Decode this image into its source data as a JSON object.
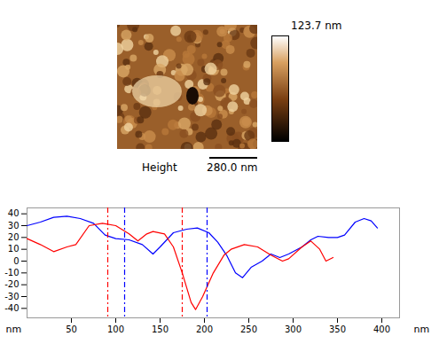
{
  "image": {
    "label": "Height",
    "scale_bar_label": "280.0 nm",
    "color_bar_max_label": "123.7 nm"
  },
  "chart_data": {
    "type": "line",
    "x_label": "nm",
    "y_label": "nm",
    "xlim": [
      0,
      420
    ],
    "xticks": [
      50,
      100,
      150,
      200,
      250,
      300,
      350,
      400
    ],
    "ylim": [
      -48,
      45
    ],
    "yticks": [
      40,
      30,
      20,
      10,
      0,
      -10,
      -20,
      -30,
      -40
    ],
    "grid": false,
    "series": [
      {
        "color": "#0000ff",
        "line_style": "solid",
        "x": [
          0,
          15,
          30,
          45,
          60,
          75,
          88,
          100,
          115,
          130,
          142,
          150,
          165,
          180,
          192,
          205,
          215,
          225,
          235,
          243,
          253,
          265,
          275,
          285,
          295,
          310,
          320,
          328,
          340,
          350,
          358,
          370,
          380,
          388,
          395
        ],
        "values": [
          30,
          33,
          37,
          38,
          36,
          32,
          22,
          19,
          18,
          14,
          6,
          12,
          24,
          27,
          28,
          24,
          16,
          5,
          -10,
          -14,
          -5,
          0,
          6,
          3,
          6,
          12,
          18,
          21,
          20,
          20,
          22,
          33,
          36,
          34,
          28
        ]
      },
      {
        "color": "#ff0000",
        "line_style": "solid",
        "x": [
          0,
          15,
          30,
          45,
          55,
          70,
          85,
          100,
          115,
          125,
          135,
          142,
          155,
          165,
          175,
          185,
          190,
          198,
          210,
          222,
          230,
          245,
          260,
          275,
          288,
          295,
          310,
          320,
          330,
          337,
          345
        ],
        "values": [
          19,
          14,
          8,
          12,
          14,
          30,
          32,
          30,
          23,
          17,
          23,
          25,
          23,
          12,
          -10,
          -35,
          -41,
          -30,
          -10,
          5,
          10,
          14,
          12,
          5,
          0,
          2,
          12,
          17,
          10,
          0,
          3
        ]
      }
    ],
    "cursors": [
      {
        "x": 91,
        "color": "#ff0000",
        "line_style": "dashdot"
      },
      {
        "x": 175,
        "color": "#ff0000",
        "line_style": "dashdot"
      },
      {
        "x": 110,
        "color": "#0000ff",
        "line_style": "dashdot"
      },
      {
        "x": 203,
        "color": "#0000ff",
        "line_style": "dashdot"
      }
    ]
  }
}
